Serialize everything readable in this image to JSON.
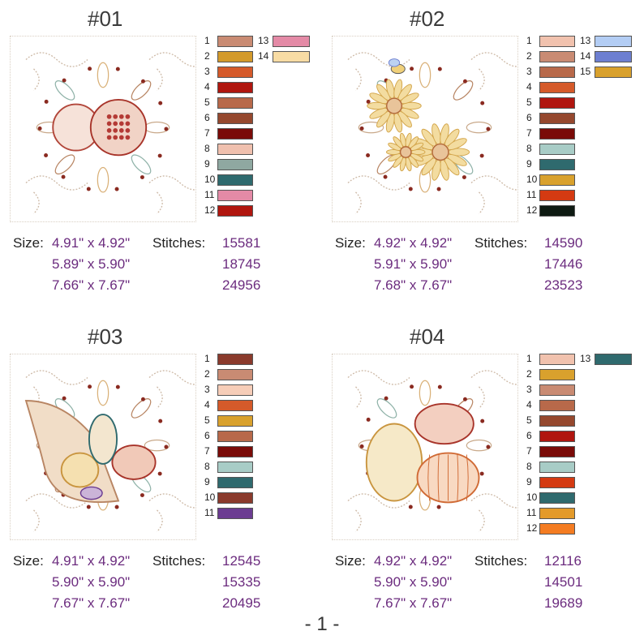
{
  "designs": [
    {
      "title": "#01",
      "art": "pomegranate-autumn-floral",
      "colors": [
        {
          "n": "1",
          "hex": "#c98b73"
        },
        {
          "n": "2",
          "hex": "#d39a2b"
        },
        {
          "n": "3",
          "hex": "#d55a2a"
        },
        {
          "n": "4",
          "hex": "#b0160f"
        },
        {
          "n": "5",
          "hex": "#b8694a"
        },
        {
          "n": "6",
          "hex": "#95482e"
        },
        {
          "n": "7",
          "hex": "#7a0b08"
        },
        {
          "n": "8",
          "hex": "#f0c0ae"
        },
        {
          "n": "9",
          "hex": "#8fa8a1"
        },
        {
          "n": "10",
          "hex": "#2f6a6e"
        },
        {
          "n": "11",
          "hex": "#e48aa6"
        },
        {
          "n": "12",
          "hex": "#b0160f"
        },
        {
          "n": "13",
          "hex": "#e48aa6"
        },
        {
          "n": "14",
          "hex": "#f8dca4"
        }
      ],
      "size_label": "Size:",
      "stitches_label": "Stitches:",
      "rows": [
        {
          "size": "4.91\" x 4.92\"",
          "stitches": "15581"
        },
        {
          "size": "5.89\" x 5.90\"",
          "stitches": "18745"
        },
        {
          "size": "7.66\" x 7.67\"",
          "stitches": "24956"
        }
      ]
    },
    {
      "title": "#02",
      "art": "sunflowers-with-bee",
      "colors": [
        {
          "n": "1",
          "hex": "#f1c2ae"
        },
        {
          "n": "2",
          "hex": "#c98b73"
        },
        {
          "n": "3",
          "hex": "#b8694a"
        },
        {
          "n": "4",
          "hex": "#d55a2a"
        },
        {
          "n": "5",
          "hex": "#b0160f"
        },
        {
          "n": "6",
          "hex": "#95482e"
        },
        {
          "n": "7",
          "hex": "#7a0b08"
        },
        {
          "n": "8",
          "hex": "#a8ccc6"
        },
        {
          "n": "9",
          "hex": "#2f6a6e"
        },
        {
          "n": "10",
          "hex": "#d9a12d"
        },
        {
          "n": "11",
          "hex": "#d43a12"
        },
        {
          "n": "12",
          "hex": "#0e1a12"
        },
        {
          "n": "13",
          "hex": "#b3cdf4"
        },
        {
          "n": "14",
          "hex": "#6d7fd1"
        },
        {
          "n": "15",
          "hex": "#d9a12d"
        }
      ],
      "size_label": "Size:",
      "stitches_label": "Stitches:",
      "rows": [
        {
          "size": "4.92\" x 4.92\"",
          "stitches": "14590"
        },
        {
          "size": "5.91\" x 5.90\"",
          "stitches": "17446"
        },
        {
          "size": "7.68\" x 7.67\"",
          "stitches": "23523"
        }
      ]
    },
    {
      "title": "#03",
      "art": "cornucopia-harvest",
      "colors": [
        {
          "n": "1",
          "hex": "#8a3a2c"
        },
        {
          "n": "2",
          "hex": "#c98b73"
        },
        {
          "n": "3",
          "hex": "#f6cdb8"
        },
        {
          "n": "4",
          "hex": "#d55a2a"
        },
        {
          "n": "5",
          "hex": "#d9a12d"
        },
        {
          "n": "6",
          "hex": "#b8694a"
        },
        {
          "n": "7",
          "hex": "#7a0b08"
        },
        {
          "n": "8",
          "hex": "#a8ccc6"
        },
        {
          "n": "9",
          "hex": "#2f6a6e"
        },
        {
          "n": "10",
          "hex": "#8a3a2c"
        },
        {
          "n": "11",
          "hex": "#6b3c91"
        }
      ],
      "size_label": "Size:",
      "stitches_label": "Stitches:",
      "rows": [
        {
          "size": "4.91\" x 4.92\"",
          "stitches": "12545"
        },
        {
          "size": "5.90\" x 5.90\"",
          "stitches": "15335"
        },
        {
          "size": "7.67\" x 7.67\"",
          "stitches": "20495"
        }
      ]
    },
    {
      "title": "#04",
      "art": "pumpkins-autumn-floral",
      "colors": [
        {
          "n": "1",
          "hex": "#f1c2ae"
        },
        {
          "n": "2",
          "hex": "#d9a12d"
        },
        {
          "n": "3",
          "hex": "#c98b73"
        },
        {
          "n": "4",
          "hex": "#b8694a"
        },
        {
          "n": "5",
          "hex": "#95482e"
        },
        {
          "n": "6",
          "hex": "#b0160f"
        },
        {
          "n": "7",
          "hex": "#7a0b08"
        },
        {
          "n": "8",
          "hex": "#a8ccc6"
        },
        {
          "n": "9",
          "hex": "#d43a12"
        },
        {
          "n": "10",
          "hex": "#2f6a6e"
        },
        {
          "n": "11",
          "hex": "#e39a2a"
        },
        {
          "n": "12",
          "hex": "#f47c22"
        },
        {
          "n": "13",
          "hex": "#2f6a6e"
        }
      ],
      "size_label": "Size:",
      "stitches_label": "Stitches:",
      "rows": [
        {
          "size": "4.92\" x 4.92\"",
          "stitches": "12116"
        },
        {
          "size": "5.90\" x 5.90\"",
          "stitches": "14501"
        },
        {
          "size": "7.67\" x 7.67\"",
          "stitches": "19689"
        }
      ]
    }
  ],
  "page_number": "- 1 -"
}
